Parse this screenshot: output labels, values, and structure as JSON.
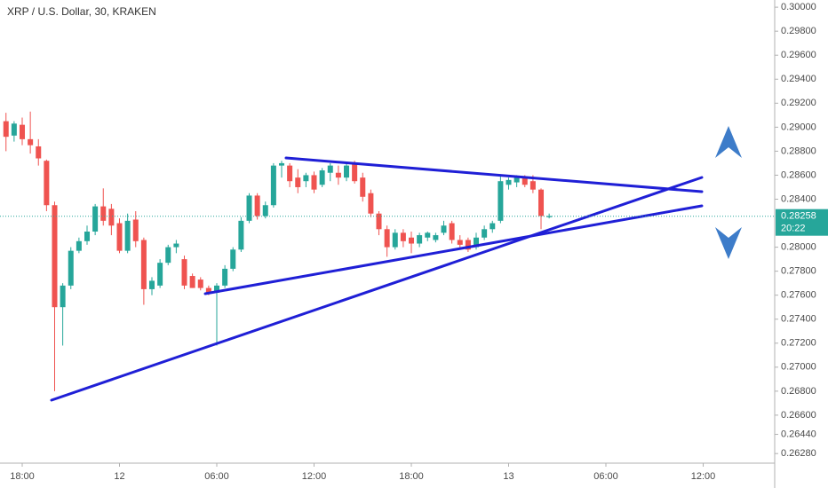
{
  "chart_data": {
    "type": "candlestick",
    "title": "XRP / U.S. Dollar, 30, KRAKEN",
    "up_color": "#26a69a",
    "down_color": "#ef5350",
    "x": [
      17,
      17.5,
      18,
      18.5,
      19,
      19.5,
      20,
      20.5,
      21,
      21.5,
      22,
      22.5,
      23,
      23.5,
      24,
      24.5,
      25,
      25.5,
      26,
      26.5,
      27,
      27.5,
      28,
      28.5,
      29,
      29.5,
      30,
      30.5,
      31,
      31.5,
      32,
      32.5,
      33,
      33.5,
      34,
      34.5,
      35,
      35.5,
      36,
      36.5,
      37,
      37.5,
      38,
      38.5,
      39,
      39.5,
      40,
      40.5,
      41,
      41.5,
      42,
      42.5,
      43,
      43.5,
      44,
      44.5,
      45,
      45.5,
      46,
      46.5,
      47,
      47.5,
      48,
      48.5,
      49,
      49.5,
      50,
      50.5
    ],
    "open": [
      0.2905,
      0.2893,
      0.2902,
      0.289,
      0.2884,
      0.2872,
      0.2835,
      0.275,
      0.2768,
      0.2797,
      0.2805,
      0.2813,
      0.2834,
      0.2832,
      0.282,
      0.2797,
      0.2823,
      0.2806,
      0.2765,
      0.2768,
      0.2787,
      0.28,
      0.279,
      0.2776,
      0.2773,
      0.2766,
      0.2762,
      0.2768,
      0.2782,
      0.2798,
      0.2822,
      0.2843,
      0.2826,
      0.2835,
      0.2868,
      0.2868,
      0.2858,
      0.2855,
      0.286,
      0.2852,
      0.2862,
      0.2862,
      0.2858,
      0.287,
      0.2858,
      0.2845,
      0.2828,
      0.2815,
      0.28,
      0.2812,
      0.2808,
      0.2803,
      0.2808,
      0.2806,
      0.2812,
      0.282,
      0.2806,
      0.2806,
      0.28,
      0.2808,
      0.2815,
      0.2822,
      0.2852,
      0.2854,
      0.2858,
      0.2855,
      0.2848,
      0.2825
    ],
    "high": [
      0.2912,
      0.2905,
      0.2908,
      0.2913,
      0.289,
      0.2873,
      0.2838,
      0.277,
      0.28,
      0.2808,
      0.2818,
      0.2836,
      0.2849,
      0.2836,
      0.2824,
      0.2828,
      0.283,
      0.2808,
      0.2775,
      0.279,
      0.2802,
      0.2806,
      0.2793,
      0.2778,
      0.2775,
      0.2768,
      0.277,
      0.2785,
      0.28,
      0.2825,
      0.2845,
      0.2845,
      0.2838,
      0.287,
      0.2872,
      0.287,
      0.2865,
      0.2862,
      0.2863,
      0.2866,
      0.287,
      0.2868,
      0.287,
      0.2872,
      0.2862,
      0.2848,
      0.283,
      0.2818,
      0.2815,
      0.2815,
      0.2813,
      0.2812,
      0.2813,
      0.2812,
      0.2822,
      0.2822,
      0.281,
      0.2808,
      0.2812,
      0.2818,
      0.2822,
      0.286,
      0.2858,
      0.286,
      0.286,
      0.286,
      0.2849,
      0.2828
    ],
    "low": [
      0.288,
      0.2888,
      0.2885,
      0.2878,
      0.2868,
      0.283,
      0.268,
      0.2718,
      0.2765,
      0.2795,
      0.2802,
      0.281,
      0.2818,
      0.281,
      0.2795,
      0.2795,
      0.28,
      0.2752,
      0.276,
      0.2766,
      0.2785,
      0.2795,
      0.2765,
      0.2766,
      0.2764,
      0.276,
      0.2718,
      0.2766,
      0.278,
      0.2796,
      0.282,
      0.2823,
      0.2824,
      0.2833,
      0.2858,
      0.285,
      0.2845,
      0.285,
      0.2845,
      0.285,
      0.2855,
      0.2852,
      0.2855,
      0.2853,
      0.2838,
      0.2825,
      0.281,
      0.2792,
      0.2798,
      0.28,
      0.2795,
      0.28,
      0.2805,
      0.2804,
      0.281,
      0.2803,
      0.2798,
      0.2796,
      0.2798,
      0.2806,
      0.2812,
      0.282,
      0.2848,
      0.285,
      0.285,
      0.2845,
      0.2815,
      0.2824
    ],
    "close": [
      0.2892,
      0.2903,
      0.289,
      0.2885,
      0.2874,
      0.2835,
      0.275,
      0.2768,
      0.2797,
      0.2805,
      0.2813,
      0.2834,
      0.2822,
      0.2818,
      0.2797,
      0.2822,
      0.2805,
      0.2765,
      0.2772,
      0.2787,
      0.28,
      0.2803,
      0.2768,
      0.2766,
      0.2766,
      0.2762,
      0.2768,
      0.2782,
      0.2798,
      0.2822,
      0.2843,
      0.2826,
      0.2835,
      0.2868,
      0.287,
      0.2855,
      0.285,
      0.286,
      0.2848,
      0.2864,
      0.2868,
      0.2858,
      0.2868,
      0.2855,
      0.2842,
      0.2828,
      0.2815,
      0.28,
      0.2812,
      0.2805,
      0.2803,
      0.281,
      0.2812,
      0.281,
      0.2818,
      0.2806,
      0.2802,
      0.2798,
      0.2808,
      0.2815,
      0.282,
      0.2855,
      0.2856,
      0.2858,
      0.2852,
      0.2848,
      0.2826,
      0.2826
    ],
    "xlim": [
      16.63,
      64.41
    ],
    "xticks": [
      {
        "value": 18,
        "label": "18:00"
      },
      {
        "value": 24,
        "label": "12"
      },
      {
        "value": 30,
        "label": "06:00"
      },
      {
        "value": 36,
        "label": "12:00"
      },
      {
        "value": 42,
        "label": "18:00"
      },
      {
        "value": 48,
        "label": "13"
      },
      {
        "value": 54,
        "label": "06:00"
      },
      {
        "value": 60,
        "label": "12:00"
      }
    ],
    "ylim": [
      0.262,
      0.3006
    ],
    "yticks": [
      {
        "value": 0.3,
        "label": "0.30000"
      },
      {
        "value": 0.298,
        "label": "0.29800"
      },
      {
        "value": 0.296,
        "label": "0.29600"
      },
      {
        "value": 0.294,
        "label": "0.29400"
      },
      {
        "value": 0.292,
        "label": "0.29200"
      },
      {
        "value": 0.29,
        "label": "0.29000"
      },
      {
        "value": 0.288,
        "label": "0.28800"
      },
      {
        "value": 0.286,
        "label": "0.28600"
      },
      {
        "value": 0.284,
        "label": "0.28400"
      },
      {
        "value": 0.28,
        "label": "0.28000"
      },
      {
        "value": 0.278,
        "label": "0.27800"
      },
      {
        "value": 0.276,
        "label": "0.27600"
      },
      {
        "value": 0.274,
        "label": "0.27400"
      },
      {
        "value": 0.272,
        "label": "0.27200"
      },
      {
        "value": 0.27,
        "label": "0.27000"
      },
      {
        "value": 0.268,
        "label": "0.26800"
      },
      {
        "value": 0.266,
        "label": "0.26600"
      },
      {
        "value": 0.2644,
        "label": "0.26440"
      },
      {
        "value": 0.2628,
        "label": "0.26280"
      }
    ],
    "last_price": {
      "value": 0.28258,
      "label": "0.28258"
    },
    "countdown": "20:22",
    "last_price_color": "#26a69a"
  }
}
